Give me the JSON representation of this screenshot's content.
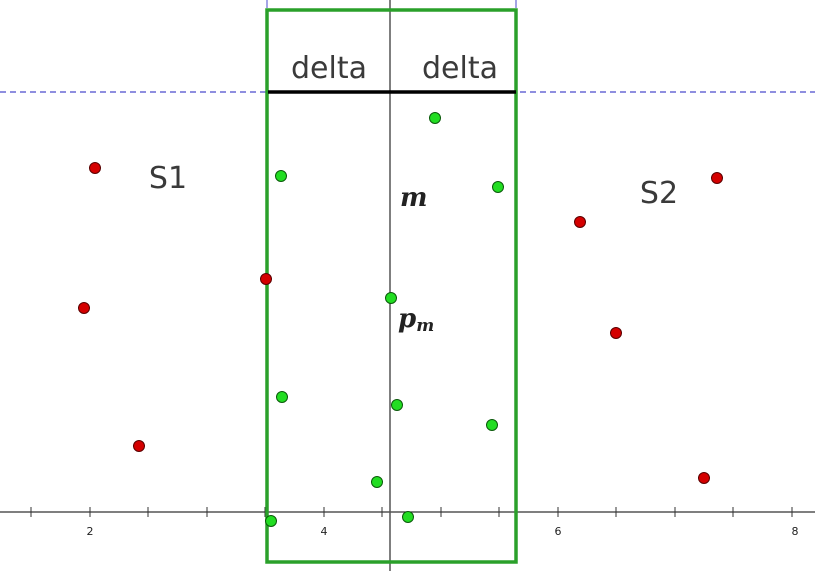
{
  "labels": {
    "delta_left": "delta",
    "delta_right": "delta",
    "s1": "S1",
    "s2": "S2",
    "m": "m",
    "pm_base": "p",
    "pm_sub": "m"
  },
  "axis": {
    "ticks": [
      "2",
      "4",
      "6",
      "8"
    ]
  },
  "colors": {
    "strip_border": "#2aa02a",
    "point_red": "#d40000",
    "point_green": "#22dd22",
    "dashed_line": "#4a4acc",
    "median_line": "#555555"
  }
}
